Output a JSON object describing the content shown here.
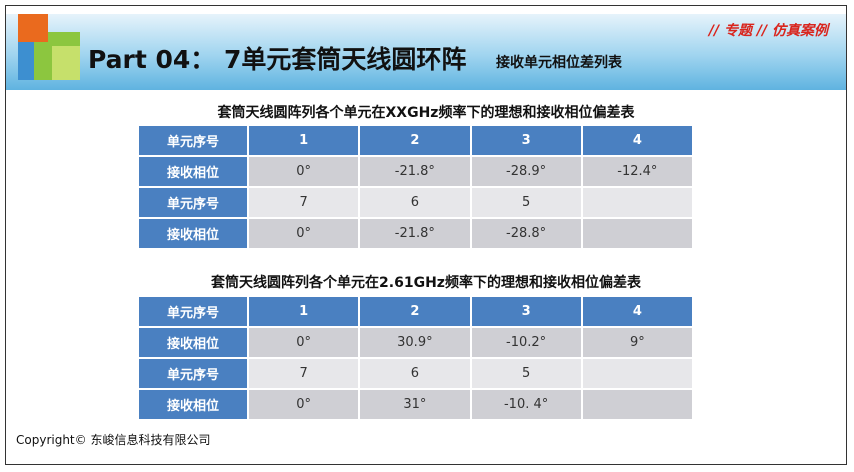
{
  "header": {
    "title": "Part 04： 7单元套筒天线圆环阵",
    "subtitle": "接收单元相位差列表",
    "tag": "// 专题 // 仿真案例"
  },
  "colors": {
    "header_blue": "#4a80c1",
    "tag_red": "#d9251d",
    "orange": "#ea6a1e",
    "green": "#8cc63f"
  },
  "tables": [
    {
      "title": "套筒天线圆阵列各个单元在XXGHz频率下的理想和接收相位偏差表",
      "rows": [
        {
          "label": "单元序号",
          "cells": [
            "1",
            "2",
            "3",
            "4"
          ]
        },
        {
          "label": "接收相位",
          "cells": [
            "0°",
            "-21.8°",
            "-28.9°",
            "-12.4°"
          ]
        },
        {
          "label": "单元序号",
          "cells": [
            "7",
            "6",
            "5",
            ""
          ]
        },
        {
          "label": "接收相位",
          "cells": [
            "0°",
            "-21.8°",
            "-28.8°",
            ""
          ]
        }
      ]
    },
    {
      "title": "套筒天线圆阵列各个单元在2.61GHz频率下的理想和接收相位偏差表",
      "rows": [
        {
          "label": "单元序号",
          "cells": [
            "1",
            "2",
            "3",
            "4"
          ]
        },
        {
          "label": "接收相位",
          "cells": [
            "0°",
            "30.9°",
            "-10.2°",
            "9°"
          ]
        },
        {
          "label": "单元序号",
          "cells": [
            "7",
            "6",
            "5",
            ""
          ]
        },
        {
          "label": "接收相位",
          "cells": [
            "0°",
            "31°",
            "-10. 4°",
            ""
          ]
        }
      ]
    }
  ],
  "footer": {
    "copyright": "Copyright© 东峻信息科技有限公司"
  }
}
